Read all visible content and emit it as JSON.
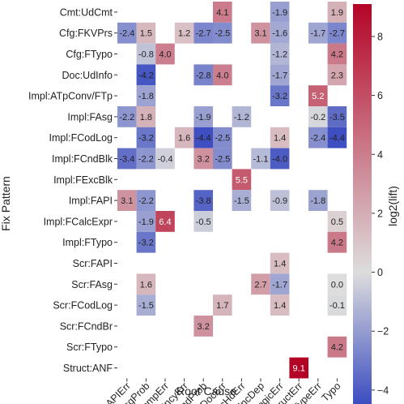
{
  "chart_data": {
    "type": "heatmap",
    "xlabel": "Root Cause",
    "ylabel": "Fix Pattern",
    "colorbar_label": "log2(lift)",
    "colorbar_ticks": [
      8,
      6,
      4,
      2,
      0,
      -2,
      -4
    ],
    "colorbar_range": [
      -4.5,
      9.1
    ],
    "colormap": [
      "#3b4cc0",
      "#dddddd",
      "#b40426"
    ],
    "x_categories": [
      "APIErr",
      "AsgProb",
      "CompErr",
      "CncyErr",
      "CndProb",
      "DocErr",
      "ExcHdErr",
      "IncDep",
      "LogicErr",
      "StructErr",
      "TypeErr",
      "Typo"
    ],
    "y_categories": [
      "Cmt:UdCmt",
      "Cfg:FKVPrs",
      "Cfg:FTypo",
      "Doc:UdInfo",
      "Impl:ATpConv/FTp",
      "Impl:FAsg",
      "Impl:FCodLog",
      "Impl:FCndBlk",
      "Impl:FExcBlk",
      "Impl:FAPI",
      "Impl:FCalcExpr",
      "Impl:FTypo",
      "Scr:FAPI",
      "Scr:FAsg",
      "Scr:FCodLog",
      "Scr:FCndBr",
      "Scr:FTypo",
      "Struct:ANF"
    ],
    "values": [
      [
        null,
        null,
        null,
        null,
        null,
        4.1,
        null,
        null,
        -1.9,
        null,
        null,
        1.9
      ],
      [
        -2.4,
        1.5,
        null,
        1.2,
        -2.7,
        -2.5,
        null,
        3.1,
        -1.6,
        null,
        -1.7,
        -2.7
      ],
      [
        null,
        -0.8,
        4.0,
        null,
        null,
        null,
        null,
        null,
        -1.2,
        null,
        null,
        4.2
      ],
      [
        null,
        -4.2,
        null,
        null,
        -2.8,
        4.0,
        null,
        null,
        -1.7,
        null,
        null,
        2.3
      ],
      [
        null,
        -1.8,
        null,
        null,
        null,
        null,
        null,
        null,
        -3.2,
        null,
        5.2,
        null
      ],
      [
        -2.2,
        1.8,
        null,
        null,
        -1.9,
        null,
        -1.2,
        null,
        null,
        null,
        -0.2,
        -3.5
      ],
      [
        null,
        -3.2,
        null,
        1.6,
        -4.4,
        -2.5,
        null,
        null,
        1.4,
        null,
        -2.4,
        -4.4
      ],
      [
        -3.4,
        -2.2,
        -0.4,
        null,
        3.2,
        -2.5,
        null,
        -1.1,
        -4.0,
        null,
        null,
        null
      ],
      [
        null,
        null,
        null,
        null,
        null,
        null,
        5.5,
        null,
        null,
        null,
        null,
        null
      ],
      [
        3.1,
        -2.2,
        null,
        null,
        -3.8,
        null,
        -1.5,
        null,
        -0.9,
        null,
        -1.8,
        null
      ],
      [
        null,
        -1.9,
        6.4,
        null,
        -0.5,
        null,
        null,
        null,
        null,
        null,
        null,
        0.5
      ],
      [
        null,
        -3.2,
        null,
        null,
        null,
        null,
        null,
        null,
        null,
        null,
        null,
        4.2
      ],
      [
        null,
        null,
        null,
        null,
        null,
        null,
        null,
        null,
        1.4,
        null,
        null,
        null
      ],
      [
        null,
        1.6,
        null,
        null,
        null,
        null,
        null,
        2.7,
        -1.7,
        null,
        null,
        0.0
      ],
      [
        null,
        -1.5,
        null,
        null,
        null,
        1.7,
        null,
        null,
        1.4,
        null,
        null,
        -0.1
      ],
      [
        null,
        null,
        null,
        null,
        3.2,
        null,
        null,
        null,
        null,
        null,
        null,
        null
      ],
      [
        null,
        null,
        null,
        null,
        null,
        null,
        null,
        null,
        null,
        null,
        null,
        4.2
      ],
      [
        null,
        null,
        null,
        null,
        null,
        null,
        null,
        null,
        null,
        9.1,
        null,
        null
      ]
    ]
  }
}
